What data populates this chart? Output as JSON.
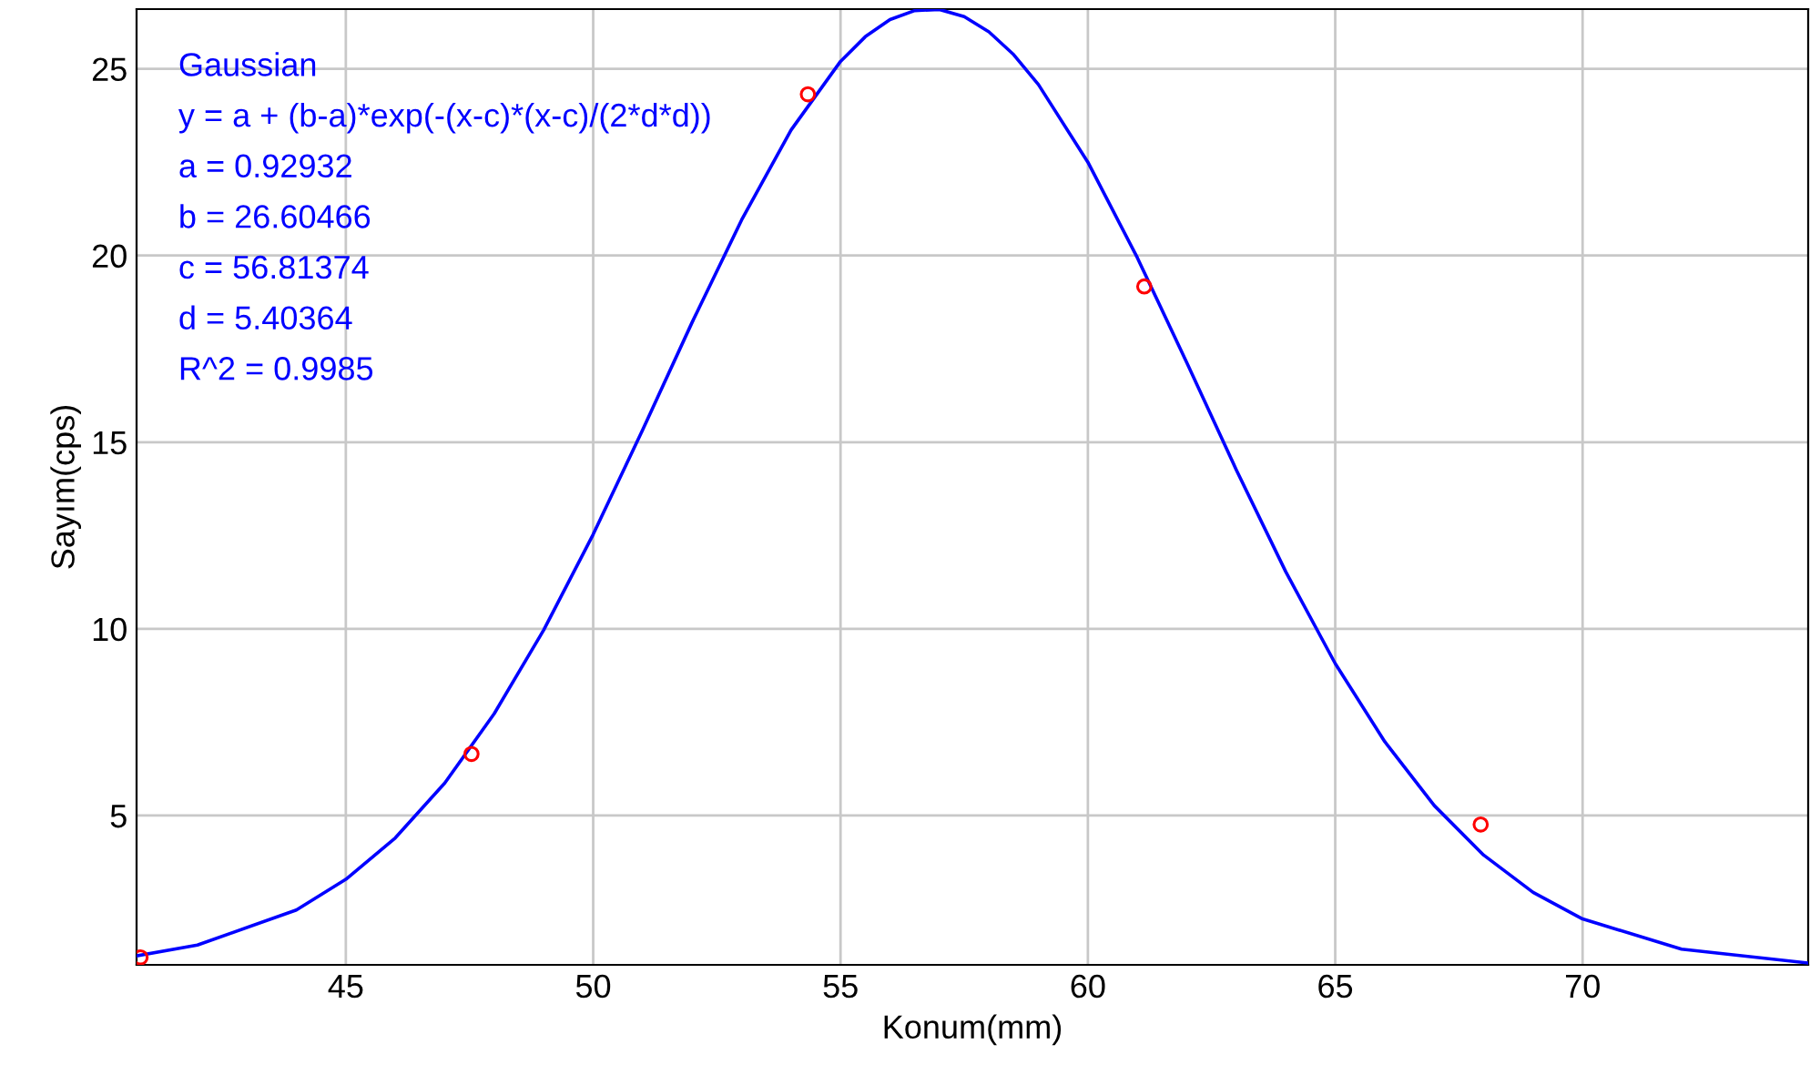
{
  "chart_data": {
    "type": "scatter",
    "xlabel": "Konum(mm)",
    "ylabel": "Sayım(cps)",
    "xlim": [
      40.77,
      74.56
    ],
    "ylim": [
      1.0,
      26.6
    ],
    "xticks": [
      45,
      50,
      55,
      60,
      65,
      70
    ],
    "yticks": [
      5,
      10,
      15,
      20,
      25
    ],
    "grid": true,
    "series": [
      {
        "type": "line",
        "color": "#0000ff",
        "marker": "none",
        "x": [
          40.77,
          42,
          44,
          45,
          46,
          47,
          48,
          49,
          50,
          51,
          52,
          53,
          54,
          55,
          55.5,
          56,
          56.5,
          57,
          57.5,
          58,
          58.5,
          59,
          60,
          61,
          62,
          63,
          64,
          65,
          66,
          67,
          68,
          69,
          70,
          72,
          74.56
        ],
        "values": [
          1.24,
          1.53,
          2.47,
          3.29,
          4.4,
          5.87,
          7.73,
          9.97,
          12.53,
          15.33,
          18.21,
          20.95,
          23.36,
          25.2,
          25.86,
          26.32,
          26.56,
          26.59,
          26.4,
          25.99,
          25.38,
          24.58,
          22.5,
          19.94,
          17.13,
          14.26,
          11.53,
          9.07,
          6.98,
          5.27,
          3.94,
          2.94,
          2.23,
          1.42,
          1.05
        ]
      },
      {
        "color": "#ff0000",
        "marker": "circle",
        "x": [
          40.85,
          47.54,
          54.34,
          61.14,
          67.94
        ],
        "values": [
          1.2,
          6.65,
          24.32,
          19.17,
          4.76
        ]
      }
    ],
    "annotations": [
      "Gaussian",
      "y = a + (b-a)*exp(-(x-c)*(x-c)/(2*d*d))",
      "a = 0.92932",
      "b = 26.60466",
      "c = 56.81374",
      "d = 5.40364",
      "R^2 = 0.9985"
    ]
  }
}
